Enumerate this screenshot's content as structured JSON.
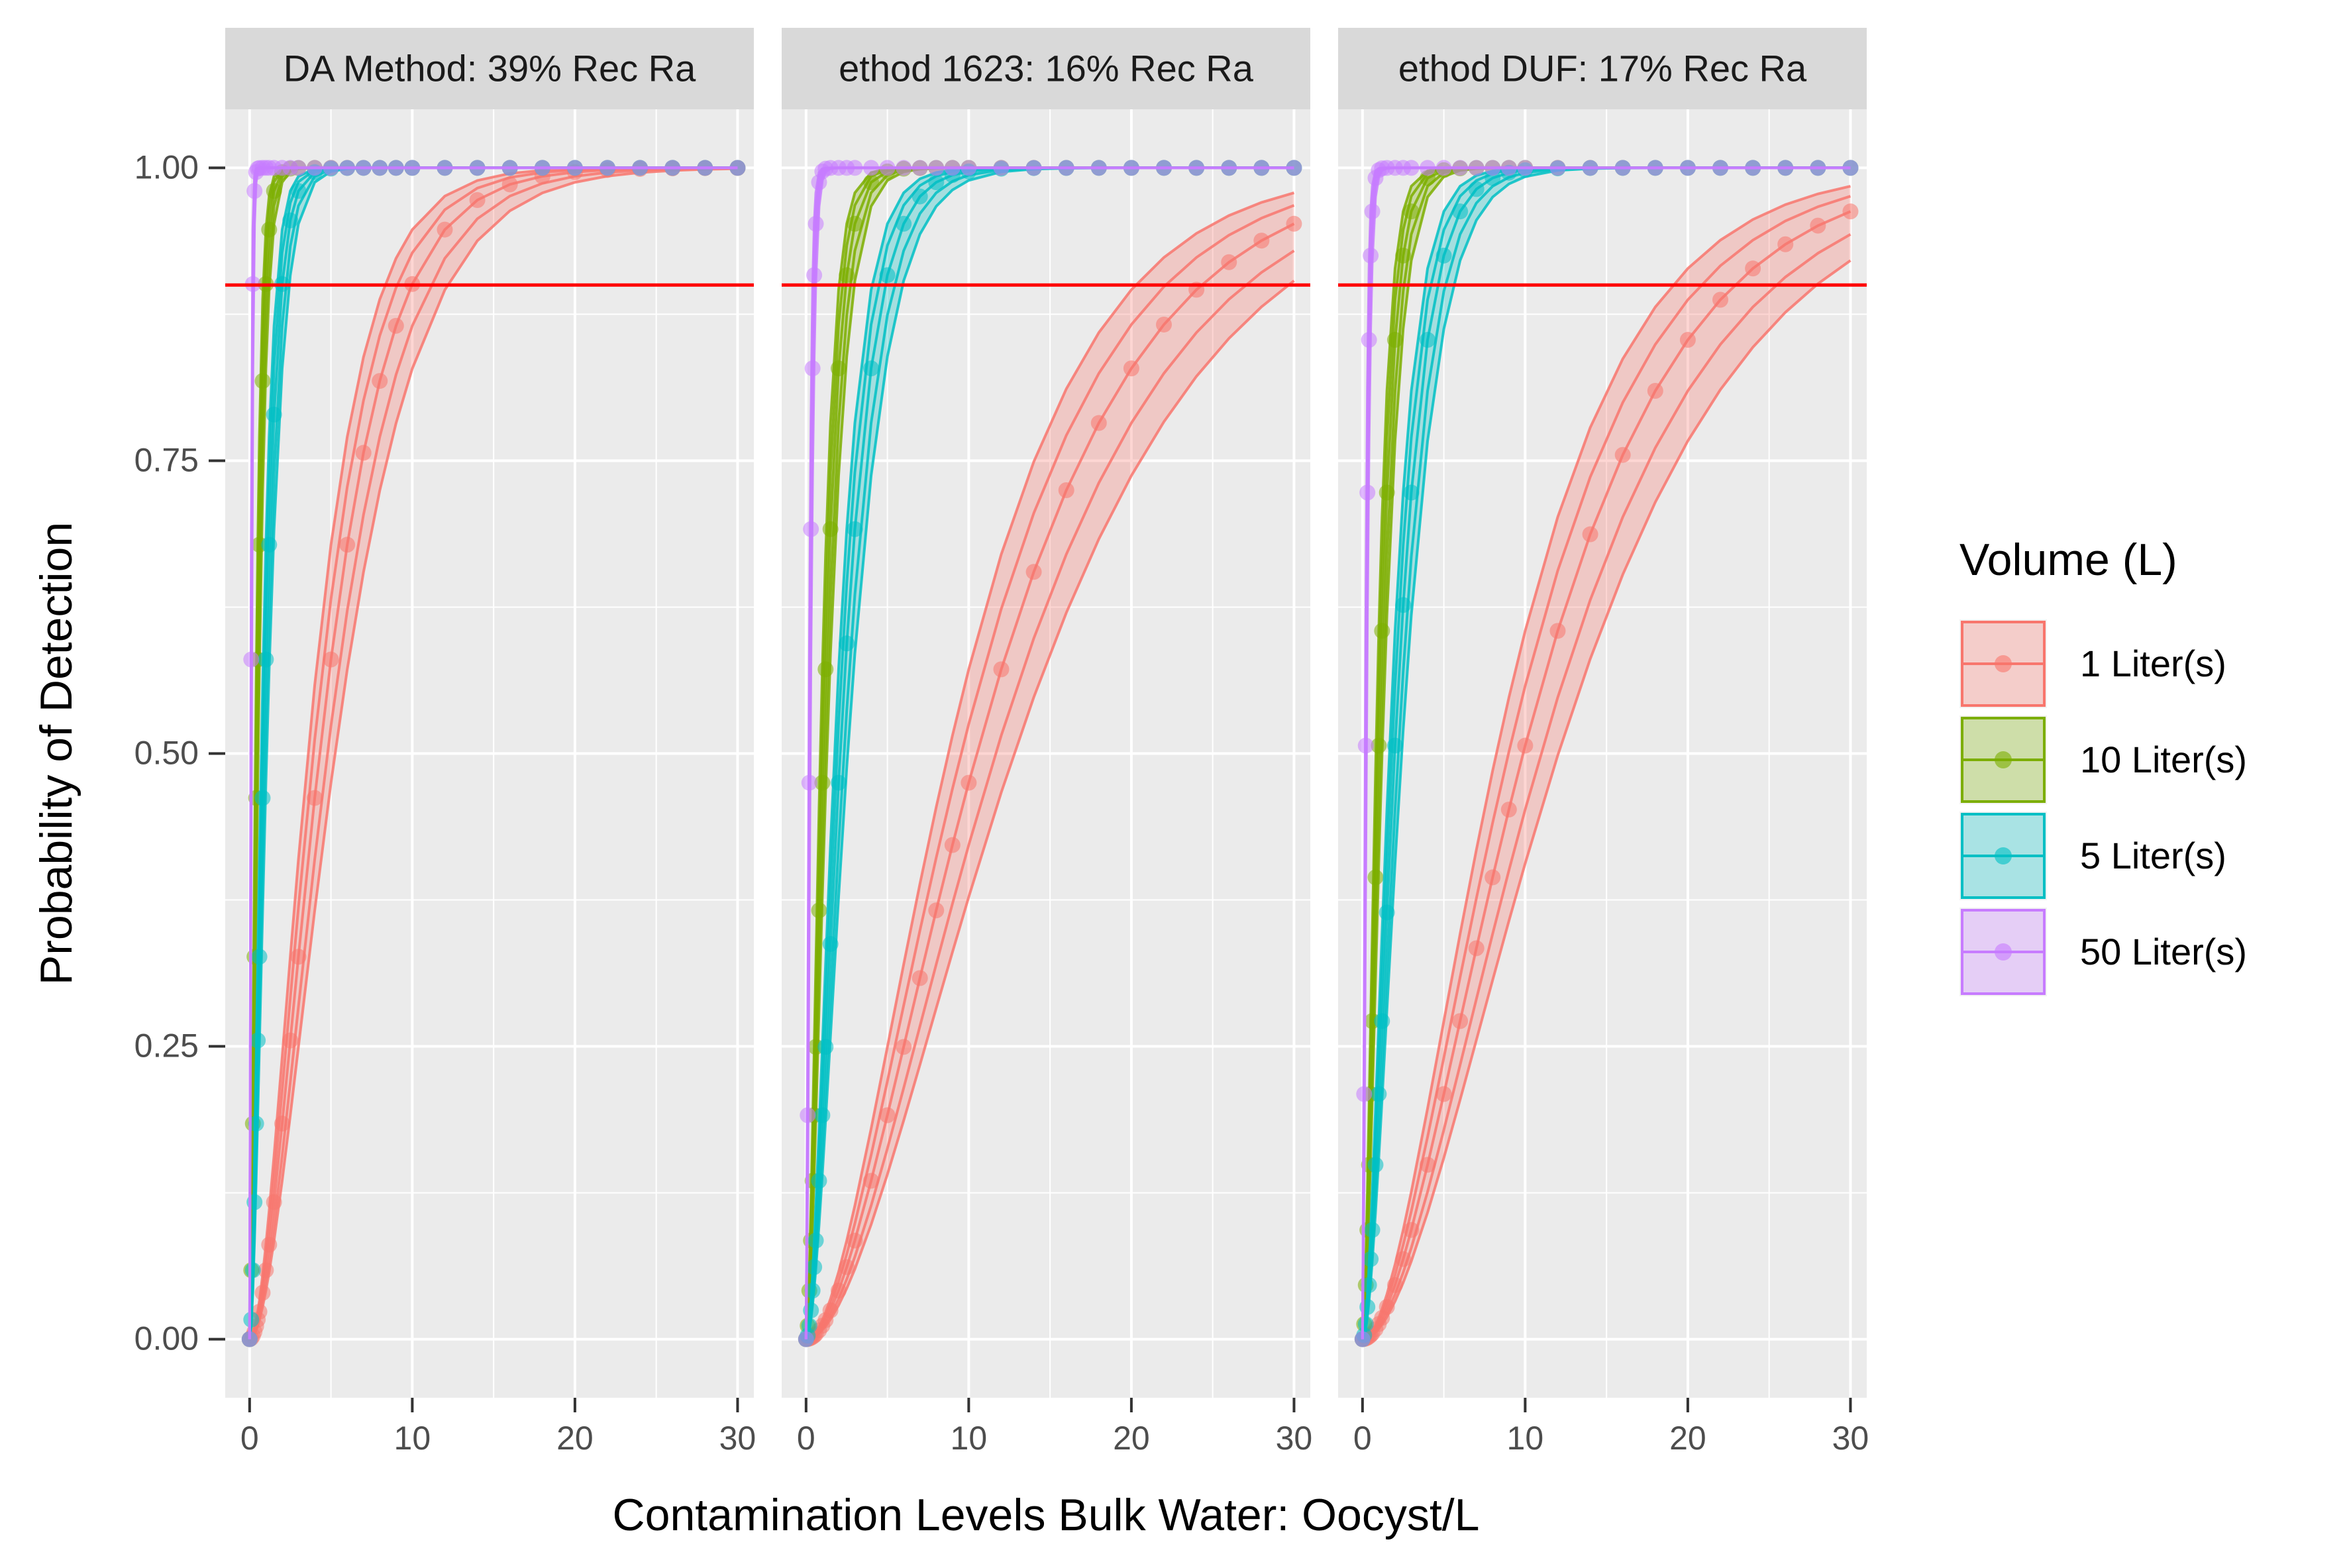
{
  "chart_data": {
    "type": "line",
    "facets": [
      {
        "label": "DA Method: 39% Rec Ra",
        "recovery": 0.39
      },
      {
        "label": "ethod 1623: 16% Rec Ra",
        "recovery": 0.16
      },
      {
        "label": "ethod DUF: 17% Rec Ra",
        "recovery": 0.17
      }
    ],
    "xlabel": "Contamination Levels Bulk Water: Oocyst/L",
    "ylabel": "Probability of Detection",
    "xlim": [
      -1.5,
      31
    ],
    "ylim": [
      -0.05,
      1.05
    ],
    "x_ticks": [
      0,
      10,
      20,
      30
    ],
    "y_ticks": [
      0,
      0.25,
      0.5,
      0.75,
      1.0
    ],
    "y_tick_labels": [
      "0.00",
      "0.25",
      "0.50",
      "0.75",
      "1.00"
    ],
    "threshold_line": {
      "y": 0.9,
      "color": "#FF0000"
    },
    "legend": {
      "title": "Volume (L)",
      "position": "right"
    },
    "series": [
      {
        "name": "1 Liter(s)",
        "volume": 1,
        "color": "#F8766D"
      },
      {
        "name": "10 Liter(s)",
        "volume": 10,
        "color": "#7CAE00"
      },
      {
        "name": "5 Liter(s)",
        "volume": 5,
        "color": "#00BFC4"
      },
      {
        "name": "50 Liter(s)",
        "volume": 50,
        "color": "#C77CFF"
      }
    ],
    "x_points": [
      0,
      0.1,
      0.2,
      0.3,
      0.4,
      0.5,
      0.6,
      0.8,
      1,
      1.2,
      1.5,
      2,
      2.5,
      3,
      4,
      5,
      6,
      7,
      8,
      9,
      10,
      12,
      14,
      16,
      18,
      20,
      22,
      24,
      26,
      28,
      30
    ],
    "grid": true,
    "panel_background": "#EBEBEB",
    "strip_background": "#D9D9D9"
  }
}
